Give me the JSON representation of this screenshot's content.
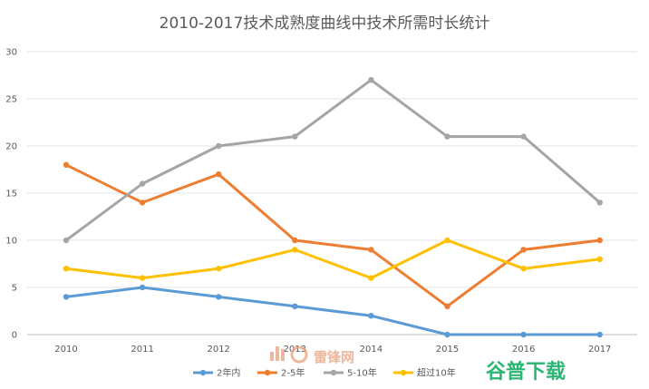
{
  "chart_data": {
    "type": "line",
    "title": "2010-2017技术成熟度曲线中技术所需时长统计",
    "categories": [
      "2010",
      "2011",
      "2012",
      "2013",
      "2014",
      "2015",
      "2016",
      "2017"
    ],
    "y_ticks": [
      "0",
      "5",
      "10",
      "15",
      "20",
      "25",
      "30"
    ],
    "ylim": [
      0,
      30
    ],
    "grid": true,
    "legend_position": "bottom",
    "series": [
      {
        "name": "2年内",
        "color": "#5B9BD5",
        "values": [
          4,
          5,
          4,
          3,
          2,
          0,
          0,
          0
        ]
      },
      {
        "name": "2-5年",
        "color": "#ED7D31",
        "values": [
          18,
          14,
          17,
          10,
          9,
          3,
          9,
          10
        ]
      },
      {
        "name": "5-10年",
        "color": "#A5A5A5",
        "values": [
          10,
          16,
          20,
          21,
          27,
          21,
          21,
          14
        ]
      },
      {
        "name": "超过10年",
        "color": "#FFC000",
        "values": [
          7,
          6,
          7,
          9,
          6,
          10,
          7,
          8
        ]
      }
    ]
  },
  "watermarks": {
    "left_text": "雷锋网",
    "left_color": "#E8A07A",
    "right_text": "谷普下载",
    "right_color": "#2BB673"
  }
}
